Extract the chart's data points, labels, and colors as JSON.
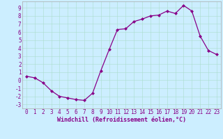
{
  "x": [
    0,
    1,
    2,
    3,
    4,
    5,
    6,
    7,
    8,
    9,
    10,
    11,
    12,
    13,
    14,
    15,
    16,
    17,
    18,
    19,
    20,
    21,
    22,
    23
  ],
  "y": [
    0.5,
    0.3,
    -0.3,
    -1.3,
    -2.0,
    -2.2,
    -2.4,
    -2.5,
    -1.6,
    1.2,
    3.8,
    6.3,
    6.4,
    7.3,
    7.6,
    8.0,
    8.1,
    8.6,
    8.3,
    9.3,
    8.6,
    5.5,
    3.7,
    3.2
  ],
  "line_color": "#880088",
  "marker": "D",
  "markersize": 2.0,
  "linewidth": 0.9,
  "bg_color": "#cceeff",
  "xlabel": "Windchill (Refroidissement éolien,°C)",
  "xlabel_fontsize": 6.0,
  "tick_fontsize": 5.5,
  "ylim": [
    -3.5,
    9.8
  ],
  "xlim": [
    -0.5,
    23.5
  ],
  "yticks": [
    -3,
    -2,
    -1,
    0,
    1,
    2,
    3,
    4,
    5,
    6,
    7,
    8,
    9
  ],
  "xticks": [
    0,
    1,
    2,
    3,
    4,
    5,
    6,
    7,
    8,
    9,
    10,
    11,
    12,
    13,
    14,
    15,
    16,
    17,
    18,
    19,
    20,
    21,
    22,
    23
  ],
  "grid_color": "#aaddcc",
  "grid_linewidth": 0.4,
  "spine_color": "#aaaaaa"
}
